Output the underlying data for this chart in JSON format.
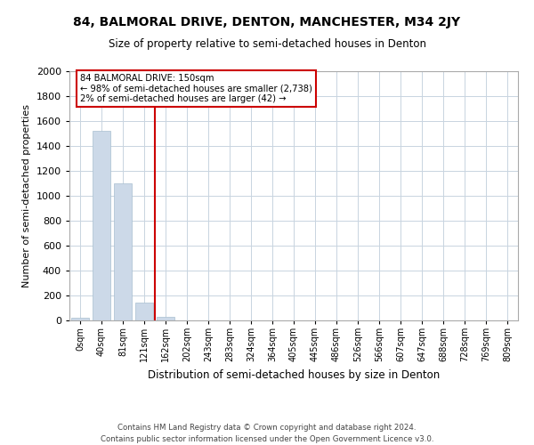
{
  "title": "84, BALMORAL DRIVE, DENTON, MANCHESTER, M34 2JY",
  "subtitle": "Size of property relative to semi-detached houses in Denton",
  "xlabel": "Distribution of semi-detached houses by size in Denton",
  "ylabel": "Number of semi-detached properties",
  "annotation_line1": "84 BALMORAL DRIVE: 150sqm",
  "annotation_line2": "← 98% of semi-detached houses are smaller (2,738)",
  "annotation_line3": "2% of semi-detached houses are larger (42) →",
  "bar_color": "#ccd9e8",
  "bar_edge_color": "#a8bfd0",
  "highlight_color": "#cc0000",
  "highlight_bar_index": 3,
  "categories": [
    "0sqm",
    "40sqm",
    "81sqm",
    "121sqm",
    "162sqm",
    "202sqm",
    "243sqm",
    "283sqm",
    "324sqm",
    "364sqm",
    "405sqm",
    "445sqm",
    "486sqm",
    "526sqm",
    "566sqm",
    "607sqm",
    "647sqm",
    "688sqm",
    "728sqm",
    "769sqm",
    "809sqm"
  ],
  "values": [
    18,
    1520,
    1100,
    140,
    30,
    0,
    0,
    0,
    0,
    0,
    0,
    0,
    0,
    0,
    0,
    0,
    0,
    0,
    0,
    0,
    0
  ],
  "property_line_x": 3.5,
  "ylim": [
    0,
    2000
  ],
  "yticks": [
    0,
    200,
    400,
    600,
    800,
    1000,
    1200,
    1400,
    1600,
    1800,
    2000
  ],
  "footer": "Contains HM Land Registry data © Crown copyright and database right 2024.\nContains public sector information licensed under the Open Government Licence v3.0.",
  "background_color": "#ffffff",
  "grid_color": "#c8d4e0"
}
